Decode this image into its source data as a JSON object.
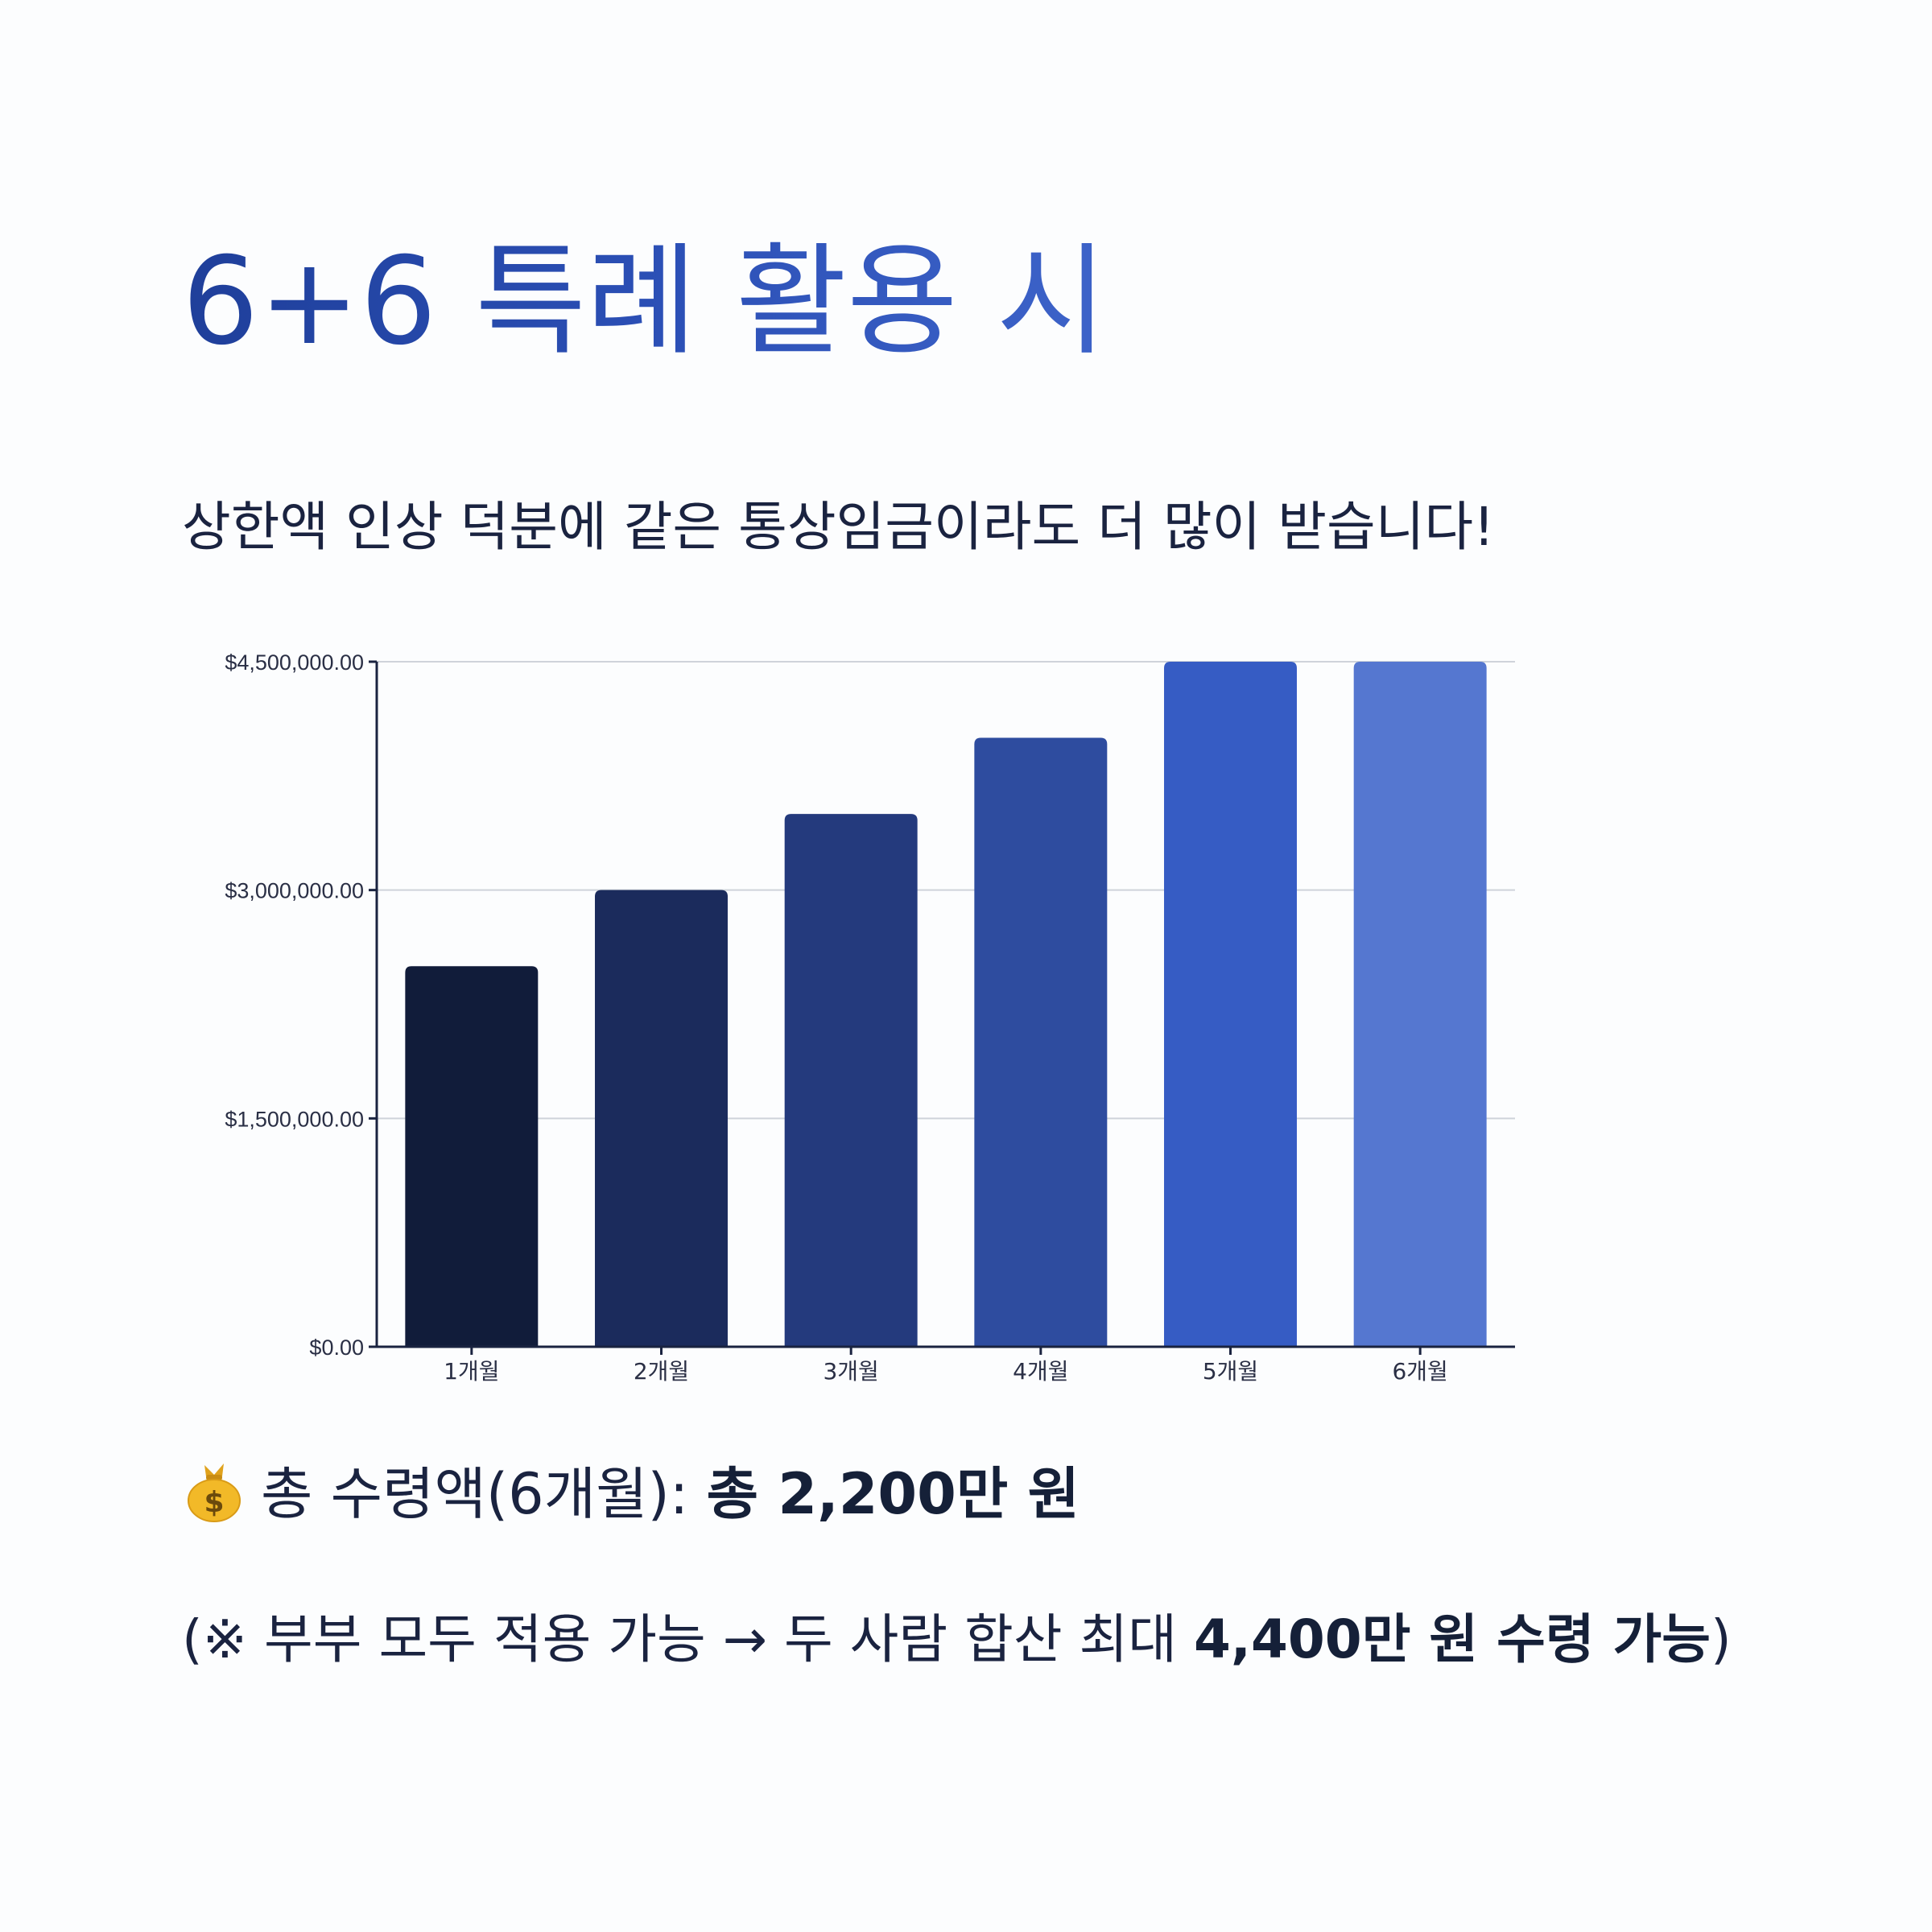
{
  "header": {
    "title": "6+6 특례 활용 시",
    "subtitle": "상한액 인상 덕분에 같은 통상임금이라도 더 많이 받습니다!"
  },
  "chart_data": {
    "type": "bar",
    "categories": [
      "1개월",
      "2개월",
      "3개월",
      "4개월",
      "5개월",
      "6개월"
    ],
    "values": [
      2500000,
      3000000,
      3500000,
      4000000,
      4500000,
      4500000
    ],
    "ylim": [
      0,
      4500000
    ],
    "yticks": [
      0,
      1500000,
      3000000,
      4500000
    ],
    "ytick_labels": [
      "$0.00",
      "$1,500,000.00",
      "$3,000,000.00",
      "$4,500,000.00"
    ],
    "bar_colors": [
      "#111c3a",
      "#1b2b5c",
      "#243a7d",
      "#2e4c9f",
      "#365cc4",
      "#5577d0"
    ],
    "grid": true,
    "xlabel": "",
    "ylabel": ""
  },
  "summary": {
    "icon": "money-bag-icon",
    "total_prefix": "총 수령액(6개월): ",
    "total_value": "총 2,200만 원",
    "note_prefix": "(※ 부부 모두 적용 가능 → 두 사람 합산 최대 ",
    "note_value": "4,400만 원 수령 가능",
    "note_suffix": ")"
  }
}
